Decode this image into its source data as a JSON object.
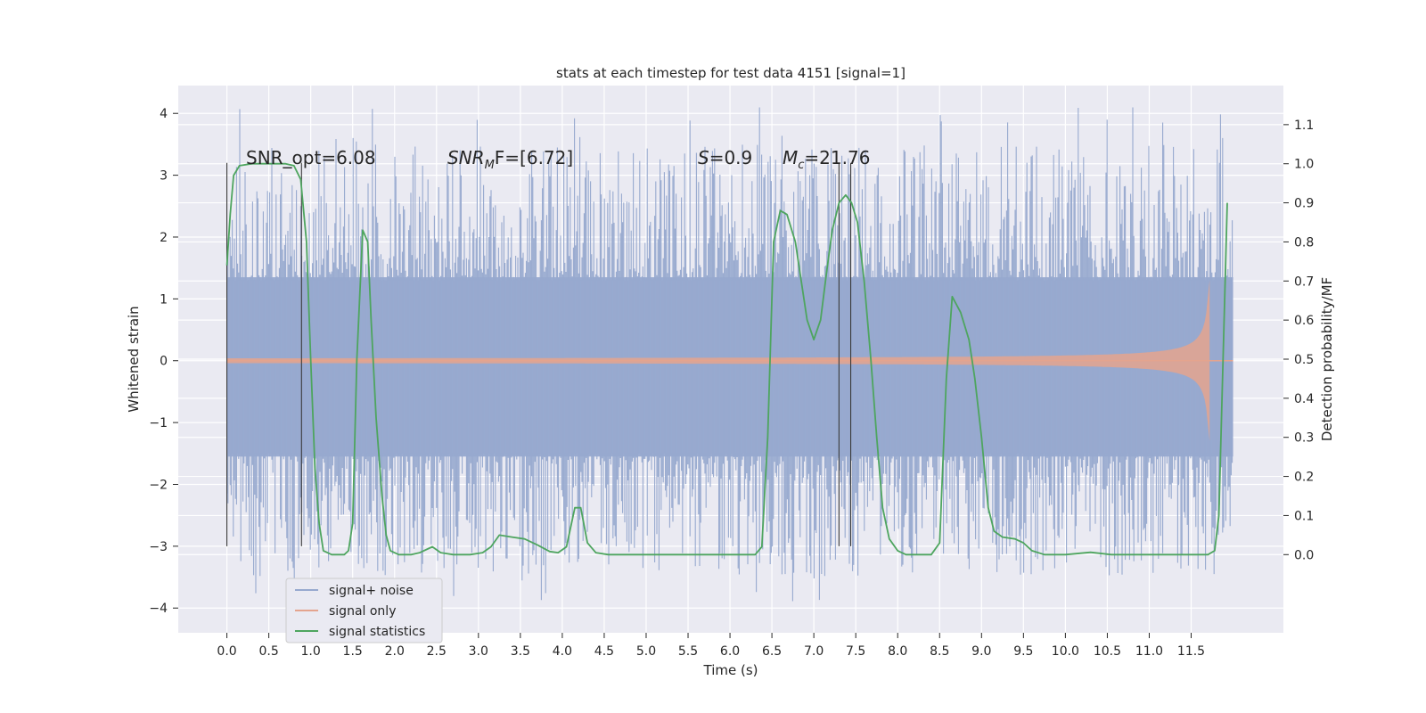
{
  "chart_data": {
    "type": "line",
    "title": "stats at each timestep for test data 4151 [signal=1]",
    "xlabel": "Time (s)",
    "ylabel_left": "Whitened strain",
    "ylabel_right": "Detection probability/MF",
    "x_ticks": [
      "0.0",
      "0.5",
      "1.0",
      "1.5",
      "2.0",
      "2.5",
      "3.0",
      "3.5",
      "4.0",
      "4.5",
      "5.0",
      "5.5",
      "6.0",
      "6.5",
      "7.0",
      "7.5",
      "8.0",
      "8.5",
      "9.0",
      "9.5",
      "10.0",
      "10.5",
      "11.0",
      "11.5"
    ],
    "y_left_ticks": [
      "4",
      "3",
      "2",
      "1",
      "0",
      "−1",
      "−2",
      "−3",
      "−4"
    ],
    "y_right_ticks": [
      "1.1",
      "1.0",
      "0.9",
      "0.8",
      "0.7",
      "0.6",
      "0.5",
      "0.4",
      "0.3",
      "0.2",
      "0.1",
      "0.0"
    ],
    "xlim": [
      -0.58,
      12.6
    ],
    "ylim_left": [
      -4.4,
      4.45
    ],
    "ylim_right": [
      -0.2,
      1.2
    ],
    "grid": true,
    "legend_position": "lower-left",
    "annotations": {
      "snr_opt": "SNR_opt=6.08",
      "snr_mf_sym": "SNR",
      "snr_mf_sub": "M",
      "snr_mf_rest": "F=[6.72]",
      "s_sym": "S",
      "s_rest": "=0.9",
      "mc_sym": "M",
      "mc_sub": "c",
      "mc_rest": "=21.76"
    },
    "vertical_markers": [
      {
        "x": 0.0,
        "y_range": [
          -3.0,
          3.2
        ]
      },
      {
        "x": 0.89,
        "y_range": [
          -3.0,
          3.2
        ]
      },
      {
        "x": 7.3,
        "y_range": [
          -3.0,
          3.2
        ]
      },
      {
        "x": 7.44,
        "y_range": [
          -3.0,
          3.2
        ]
      }
    ],
    "series": [
      {
        "name": "signal+ noise",
        "color": "#97a9cf",
        "noise_band": {
          "x_range": [
            0.0,
            12.0
          ],
          "core_sigma": 1.0,
          "spike_max": 4.1,
          "spike_min": -3.9
        }
      },
      {
        "name": "signal only",
        "color": "#e4a48e",
        "chirp": {
          "x_end": 11.72,
          "max_amplitude": 1.3
        }
      },
      {
        "name": "signal statistics",
        "color": "#4ea55f",
        "axis": "right",
        "points": [
          [
            0.0,
            0.74
          ],
          [
            0.04,
            0.87
          ],
          [
            0.08,
            0.97
          ],
          [
            0.15,
            0.995
          ],
          [
            0.3,
            1.0
          ],
          [
            0.5,
            1.0
          ],
          [
            0.7,
            1.0
          ],
          [
            0.8,
            0.995
          ],
          [
            0.88,
            0.96
          ],
          [
            0.95,
            0.8
          ],
          [
            1.0,
            0.5
          ],
          [
            1.05,
            0.22
          ],
          [
            1.1,
            0.08
          ],
          [
            1.15,
            0.01
          ],
          [
            1.25,
            0.0
          ],
          [
            1.4,
            0.0
          ],
          [
            1.45,
            0.01
          ],
          [
            1.5,
            0.08
          ],
          [
            1.55,
            0.5
          ],
          [
            1.62,
            0.83
          ],
          [
            1.68,
            0.8
          ],
          [
            1.72,
            0.6
          ],
          [
            1.78,
            0.35
          ],
          [
            1.85,
            0.15
          ],
          [
            1.9,
            0.05
          ],
          [
            1.95,
            0.01
          ],
          [
            2.05,
            0.0
          ],
          [
            2.2,
            0.0
          ],
          [
            2.3,
            0.005
          ],
          [
            2.45,
            0.02
          ],
          [
            2.55,
            0.005
          ],
          [
            2.7,
            0.0
          ],
          [
            2.9,
            0.0
          ],
          [
            3.05,
            0.005
          ],
          [
            3.15,
            0.02
          ],
          [
            3.25,
            0.05
          ],
          [
            3.4,
            0.045
          ],
          [
            3.55,
            0.04
          ],
          [
            3.7,
            0.025
          ],
          [
            3.85,
            0.008
          ],
          [
            3.95,
            0.005
          ],
          [
            4.05,
            0.02
          ],
          [
            4.15,
            0.12
          ],
          [
            4.22,
            0.12
          ],
          [
            4.3,
            0.03
          ],
          [
            4.4,
            0.005
          ],
          [
            4.55,
            0.0
          ],
          [
            5.0,
            0.0
          ],
          [
            5.5,
            0.0
          ],
          [
            6.0,
            0.0
          ],
          [
            6.3,
            0.0
          ],
          [
            6.38,
            0.02
          ],
          [
            6.45,
            0.3
          ],
          [
            6.52,
            0.8
          ],
          [
            6.6,
            0.88
          ],
          [
            6.68,
            0.87
          ],
          [
            6.78,
            0.8
          ],
          [
            6.85,
            0.7
          ],
          [
            6.92,
            0.6
          ],
          [
            7.0,
            0.55
          ],
          [
            7.08,
            0.6
          ],
          [
            7.15,
            0.72
          ],
          [
            7.22,
            0.83
          ],
          [
            7.3,
            0.9
          ],
          [
            7.38,
            0.92
          ],
          [
            7.45,
            0.9
          ],
          [
            7.52,
            0.85
          ],
          [
            7.6,
            0.7
          ],
          [
            7.68,
            0.5
          ],
          [
            7.75,
            0.3
          ],
          [
            7.82,
            0.12
          ],
          [
            7.9,
            0.04
          ],
          [
            8.0,
            0.01
          ],
          [
            8.1,
            0.0
          ],
          [
            8.4,
            0.0
          ],
          [
            8.5,
            0.03
          ],
          [
            8.58,
            0.45
          ],
          [
            8.65,
            0.66
          ],
          [
            8.75,
            0.62
          ],
          [
            8.85,
            0.55
          ],
          [
            8.92,
            0.45
          ],
          [
            9.0,
            0.3
          ],
          [
            9.08,
            0.12
          ],
          [
            9.15,
            0.06
          ],
          [
            9.25,
            0.045
          ],
          [
            9.4,
            0.04
          ],
          [
            9.5,
            0.03
          ],
          [
            9.6,
            0.01
          ],
          [
            9.75,
            0.0
          ],
          [
            10.0,
            0.0
          ],
          [
            10.3,
            0.006
          ],
          [
            10.55,
            0.0
          ],
          [
            11.0,
            0.0
          ],
          [
            11.4,
            0.0
          ],
          [
            11.7,
            0.0
          ],
          [
            11.78,
            0.01
          ],
          [
            11.83,
            0.1
          ],
          [
            11.88,
            0.5
          ],
          [
            11.93,
            0.9
          ]
        ]
      }
    ]
  }
}
